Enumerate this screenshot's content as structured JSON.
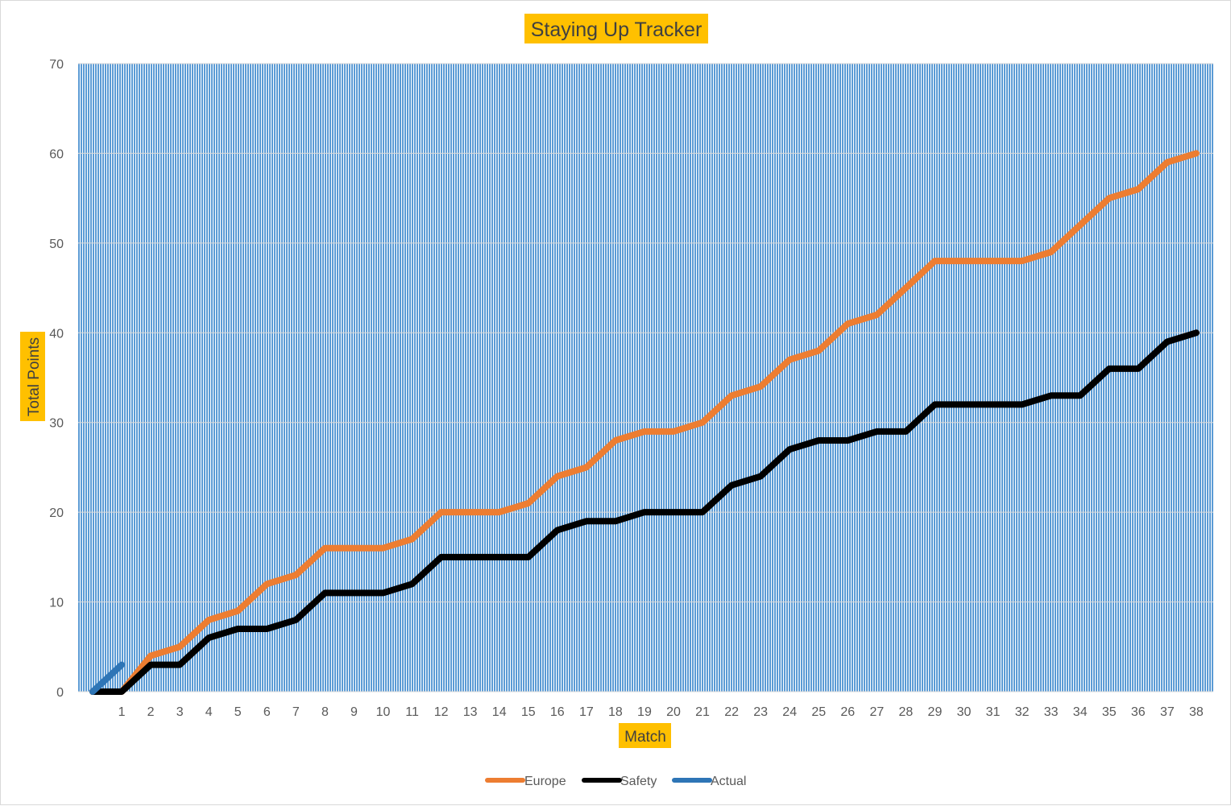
{
  "chart_data": {
    "type": "line",
    "title": "Staying Up Tracker",
    "xlabel": "Match",
    "ylabel": "Total Points",
    "ylim": [
      0,
      70
    ],
    "yticks": [
      0,
      10,
      20,
      30,
      40,
      50,
      60,
      70
    ],
    "categories": [
      "1",
      "2",
      "3",
      "4",
      "5",
      "6",
      "7",
      "8",
      "9",
      "10",
      "11",
      "12",
      "13",
      "14",
      "15",
      "16",
      "17",
      "18",
      "19",
      "20",
      "21",
      "22",
      "23",
      "24",
      "25",
      "26",
      "27",
      "28",
      "29",
      "30",
      "31",
      "32",
      "33",
      "34",
      "35",
      "36",
      "37",
      "38"
    ],
    "x_start": 0,
    "series": [
      {
        "name": "Europe",
        "color": "#ed7d31",
        "x": [
          0,
          1,
          2,
          3,
          4,
          5,
          6,
          7,
          8,
          9,
          10,
          11,
          12,
          13,
          14,
          15,
          16,
          17,
          18,
          19,
          20,
          21,
          22,
          23,
          24,
          25,
          26,
          27,
          28,
          29,
          30,
          31,
          32,
          33,
          34,
          35,
          36,
          37,
          38
        ],
        "values": [
          0,
          0,
          4,
          5,
          8,
          9,
          12,
          13,
          16,
          16,
          16,
          17,
          20,
          20,
          20,
          21,
          24,
          25,
          28,
          29,
          29,
          30,
          33,
          34,
          37,
          38,
          41,
          42,
          45,
          48,
          48,
          48,
          48,
          49,
          52,
          55,
          56,
          59,
          60
        ]
      },
      {
        "name": "Safety",
        "color": "#000000",
        "x": [
          0,
          1,
          2,
          3,
          4,
          5,
          6,
          7,
          8,
          9,
          10,
          11,
          12,
          13,
          14,
          15,
          16,
          17,
          18,
          19,
          20,
          21,
          22,
          23,
          24,
          25,
          26,
          27,
          28,
          29,
          30,
          31,
          32,
          33,
          34,
          35,
          36,
          37,
          38
        ],
        "values": [
          0,
          0,
          3,
          3,
          6,
          7,
          7,
          8,
          11,
          11,
          11,
          12,
          15,
          15,
          15,
          15,
          18,
          19,
          19,
          20,
          20,
          20,
          23,
          24,
          27,
          28,
          28,
          29,
          29,
          32,
          32,
          32,
          32,
          33,
          33,
          36,
          36,
          39,
          40
        ]
      },
      {
        "name": "Actual",
        "color": "#2e75b6",
        "x": [
          0,
          1
        ],
        "values": [
          0,
          3
        ]
      }
    ],
    "legend_position": "bottom",
    "plot_background": "vertical-hatch",
    "hatch_color": "#5b9bd5",
    "label_highlight_color": "#ffc000"
  }
}
